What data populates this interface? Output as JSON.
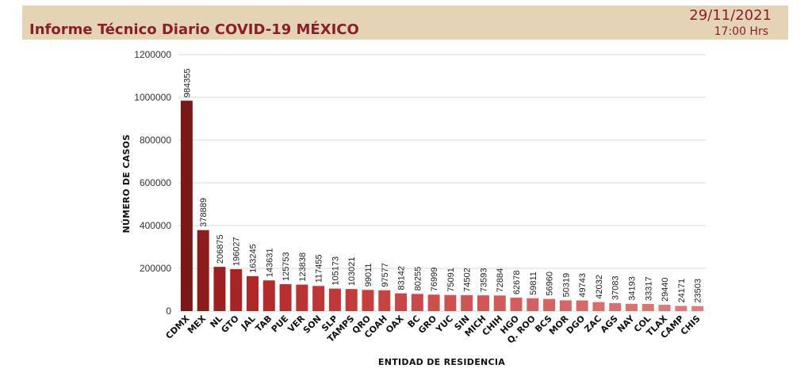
{
  "header": {
    "title": "Informe Técnico Diario COVID-19 MÉXICO",
    "date": "29/11/2021",
    "time": "17:00 Hrs"
  },
  "chart_data": {
    "type": "bar",
    "xlabel": "ENTIDAD DE RESIDENCIA",
    "ylabel": "NÚMERO DE CASOS",
    "ylim": [
      0,
      1200000
    ],
    "yticks": [
      "0",
      "200000",
      "400000",
      "600000",
      "800000",
      "1000000",
      "1200000"
    ],
    "grid": true,
    "categories": [
      "CDMX",
      "MEX",
      "NL",
      "GTO",
      "JAL",
      "TAB",
      "PUE",
      "VER",
      "SON",
      "SLP",
      "TAMPS",
      "QRO",
      "COAH",
      "OAX",
      "BC",
      "GRO",
      "YUC",
      "SIN",
      "MICH",
      "CHIH",
      "HGO",
      "Q. ROO",
      "BCS",
      "MOR",
      "DGO",
      "ZAC",
      "AGS",
      "NAY",
      "COL",
      "TLAX",
      "CAMP",
      "CHIS"
    ],
    "values": [
      984355,
      378889,
      206875,
      196027,
      163245,
      143631,
      125753,
      123838,
      117455,
      105173,
      103021,
      99011,
      97577,
      83142,
      80255,
      76999,
      75091,
      74502,
      73593,
      72884,
      62678,
      59811,
      56960,
      50319,
      49743,
      42032,
      37083,
      34193,
      33317,
      29440,
      24171,
      23503
    ],
    "colors": [
      "#7b1717",
      "#8e1c1c",
      "#9e1f1f",
      "#a82323",
      "#b02727",
      "#b52a2a",
      "#ba2e2e",
      "#bd3232",
      "#c03535",
      "#c23838",
      "#c43b3b",
      "#c63e3e",
      "#c84141",
      "#ca4545",
      "#cc4949",
      "#ce4d4d",
      "#d05050",
      "#d25353",
      "#d35656",
      "#d45959",
      "#d55c5c",
      "#d65f5f",
      "#d76262",
      "#d86565",
      "#d96868",
      "#da6b6b",
      "#db6e6e",
      "#dc7171",
      "#dd7474",
      "#de7777",
      "#df7a7a",
      "#e07d7d"
    ]
  }
}
